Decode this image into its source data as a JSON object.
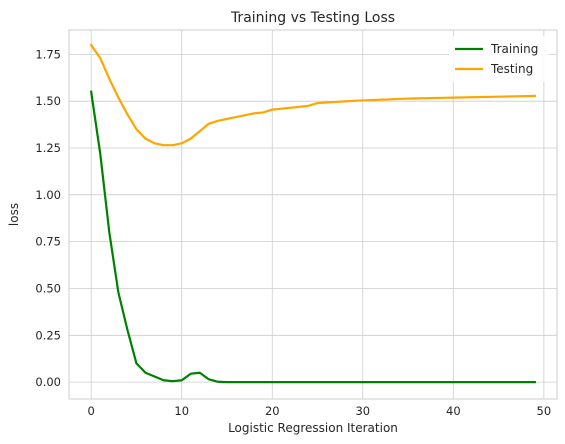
{
  "chart_data": {
    "type": "line",
    "title": "Training vs Testing Loss",
    "xlabel": "Logistic Regression Iteration",
    "ylabel": "loss",
    "xlim": [
      -2.45,
      51.45
    ],
    "ylim": [
      -0.09,
      1.88
    ],
    "xticks": [
      0,
      10,
      20,
      30,
      40,
      50
    ],
    "yticks": [
      0.0,
      0.25,
      0.5,
      0.75,
      1.0,
      1.25,
      1.5,
      1.75
    ],
    "ytick_labels": [
      "0.00",
      "0.25",
      "0.50",
      "0.75",
      "1.00",
      "1.25",
      "1.50",
      "1.75"
    ],
    "grid": true,
    "legend_position": "top-right",
    "series": [
      {
        "name": "Training",
        "color": "#008000",
        "x": [
          0,
          1,
          2,
          3,
          4,
          5,
          6,
          7,
          8,
          9,
          10,
          11,
          12,
          13,
          14,
          15,
          16,
          17,
          18,
          19,
          20,
          21,
          22,
          23,
          24,
          25,
          26,
          27,
          28,
          29,
          30,
          31,
          32,
          33,
          34,
          35,
          36,
          37,
          38,
          39,
          40,
          41,
          42,
          43,
          44,
          45,
          46,
          47,
          48,
          49
        ],
        "values": [
          1.55,
          1.22,
          0.8,
          0.48,
          0.28,
          0.1,
          0.05,
          0.03,
          0.01,
          0.005,
          0.01,
          0.045,
          0.05,
          0.015,
          0.002,
          0,
          0,
          0,
          0,
          0,
          0,
          0,
          0,
          0,
          0,
          0,
          0,
          0,
          0,
          0,
          0,
          0,
          0,
          0,
          0,
          0,
          0,
          0,
          0,
          0,
          0,
          0,
          0,
          0,
          0,
          0,
          0,
          0,
          0,
          0
        ]
      },
      {
        "name": "Testing",
        "color": "#ffa500",
        "x": [
          0,
          1,
          2,
          3,
          4,
          5,
          6,
          7,
          8,
          9,
          10,
          11,
          12,
          13,
          14,
          15,
          16,
          17,
          18,
          19,
          20,
          21,
          22,
          23,
          24,
          25,
          26,
          27,
          28,
          29,
          30,
          31,
          32,
          33,
          34,
          35,
          36,
          37,
          38,
          39,
          40,
          41,
          42,
          43,
          44,
          45,
          46,
          47,
          48,
          49
        ],
        "values": [
          1.8,
          1.73,
          1.62,
          1.52,
          1.43,
          1.35,
          1.3,
          1.275,
          1.265,
          1.265,
          1.275,
          1.3,
          1.34,
          1.38,
          1.395,
          1.405,
          1.415,
          1.425,
          1.435,
          1.44,
          1.455,
          1.46,
          1.465,
          1.47,
          1.475,
          1.49,
          1.493,
          1.496,
          1.499,
          1.502,
          1.504,
          1.506,
          1.508,
          1.51,
          1.512,
          1.514,
          1.515,
          1.516,
          1.517,
          1.518,
          1.519,
          1.52,
          1.521,
          1.522,
          1.523,
          1.524,
          1.525,
          1.526,
          1.527,
          1.528
        ]
      }
    ]
  }
}
